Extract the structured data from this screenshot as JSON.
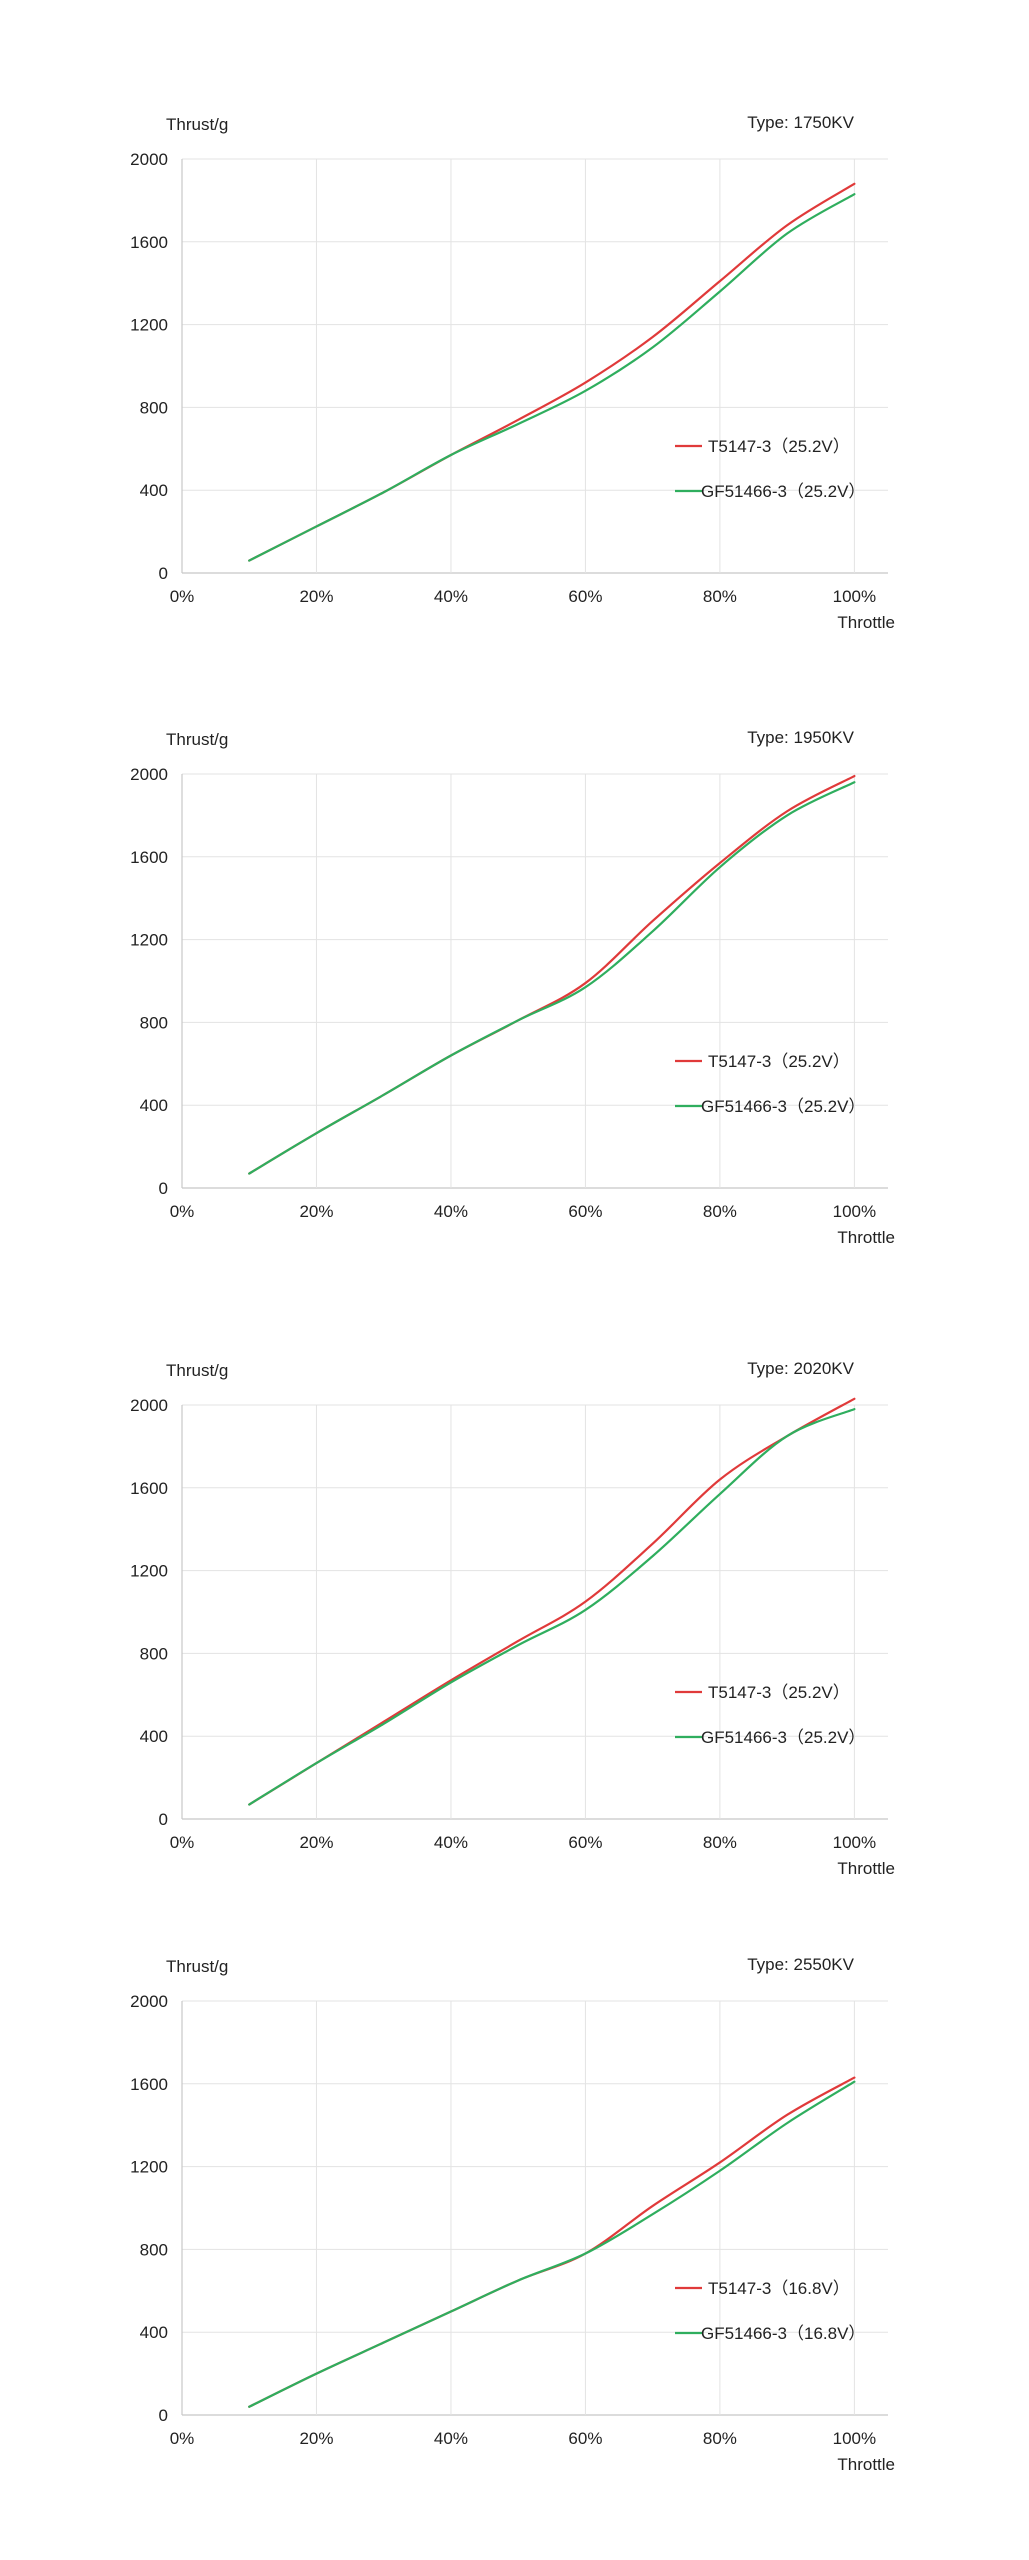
{
  "chart_data": [
    {
      "type": "line",
      "title": "Type: 1750KV",
      "xlabel": "Throttle",
      "ylabel": "Thrust/g",
      "x": [
        10,
        20,
        30,
        40,
        50,
        60,
        70,
        80,
        90,
        100
      ],
      "x_tick_labels": [
        "0%",
        "20%",
        "40%",
        "60%",
        "80%",
        "100%"
      ],
      "x_ticks": [
        0,
        20,
        40,
        60,
        80,
        100
      ],
      "xlim": [
        0,
        105
      ],
      "ylim": [
        0,
        2000
      ],
      "y_ticks": [
        0,
        400,
        800,
        1200,
        1600,
        2000
      ],
      "y_tick_labels": [
        "0",
        "400",
        "800",
        "1200",
        "1600",
        "2000"
      ],
      "grid": true,
      "legend_position": "right",
      "series": [
        {
          "name": "T5147-3（25.2V）",
          "color": "#e03a3a",
          "values": [
            60,
            225,
            390,
            570,
            740,
            920,
            1140,
            1410,
            1680,
            1880
          ]
        },
        {
          "name": "GF51466-3（25.2V）",
          "color": "#2fae5e",
          "values": [
            60,
            225,
            390,
            570,
            720,
            880,
            1090,
            1360,
            1640,
            1830
          ]
        }
      ]
    },
    {
      "type": "line",
      "title": "Type: 1950KV",
      "xlabel": "Throttle",
      "ylabel": "Thrust/g",
      "x": [
        10,
        20,
        30,
        40,
        50,
        60,
        70,
        80,
        90,
        100
      ],
      "x_tick_labels": [
        "0%",
        "20%",
        "40%",
        "60%",
        "80%",
        "100%"
      ],
      "x_ticks": [
        0,
        20,
        40,
        60,
        80,
        100
      ],
      "xlim": [
        0,
        105
      ],
      "ylim": [
        0,
        2000
      ],
      "y_ticks": [
        0,
        400,
        800,
        1200,
        1600,
        2000
      ],
      "y_tick_labels": [
        "0",
        "400",
        "800",
        "1200",
        "1600",
        "2000"
      ],
      "grid": true,
      "legend_position": "right",
      "series": [
        {
          "name": "T5147-3（25.2V）",
          "color": "#e03a3a",
          "values": [
            70,
            265,
            450,
            640,
            810,
            990,
            1290,
            1570,
            1820,
            1990
          ]
        },
        {
          "name": "GF51466-3（25.2V）",
          "color": "#2fae5e",
          "values": [
            70,
            265,
            450,
            640,
            810,
            970,
            1240,
            1550,
            1800,
            1960
          ]
        }
      ]
    },
    {
      "type": "line",
      "title": "Type: 2020KV",
      "xlabel": "Throttle",
      "ylabel": "Thrust/g",
      "x": [
        10,
        20,
        30,
        40,
        50,
        60,
        70,
        80,
        90,
        100
      ],
      "x_tick_labels": [
        "0%",
        "20%",
        "40%",
        "60%",
        "80%",
        "100%"
      ],
      "x_ticks": [
        0,
        20,
        40,
        60,
        80,
        100
      ],
      "xlim": [
        0,
        105
      ],
      "ylim": [
        0,
        2000
      ],
      "y_ticks": [
        0,
        400,
        800,
        1200,
        1600,
        2000
      ],
      "y_tick_labels": [
        "0",
        "400",
        "800",
        "1200",
        "1600",
        "2000"
      ],
      "grid": true,
      "legend_position": "right",
      "series": [
        {
          "name": "T5147-3（25.2V）",
          "color": "#e03a3a",
          "values": [
            70,
            270,
            470,
            670,
            860,
            1050,
            1330,
            1640,
            1850,
            2030
          ]
        },
        {
          "name": "GF51466-3（25.2V）",
          "color": "#2fae5e",
          "values": [
            70,
            270,
            460,
            660,
            840,
            1010,
            1270,
            1570,
            1850,
            1980
          ]
        }
      ]
    },
    {
      "type": "line",
      "title": "Type: 2550KV",
      "xlabel": "Throttle",
      "ylabel": "Thrust/g",
      "x": [
        10,
        20,
        30,
        40,
        50,
        60,
        70,
        80,
        90,
        100
      ],
      "x_tick_labels": [
        "0%",
        "20%",
        "40%",
        "60%",
        "80%",
        "100%"
      ],
      "x_ticks": [
        0,
        20,
        40,
        60,
        80,
        100
      ],
      "xlim": [
        0,
        105
      ],
      "ylim": [
        0,
        2000
      ],
      "y_ticks": [
        0,
        400,
        800,
        1200,
        1600,
        2000
      ],
      "y_tick_labels": [
        "0",
        "400",
        "800",
        "1200",
        "1600",
        "2000"
      ],
      "grid": true,
      "legend_position": "right",
      "series": [
        {
          "name": "T5147-3（16.8V）",
          "color": "#e03a3a",
          "values": [
            40,
            200,
            350,
            500,
            650,
            780,
            1010,
            1220,
            1450,
            1630
          ]
        },
        {
          "name": "GF51466-3（16.8V）",
          "color": "#2fae5e",
          "values": [
            40,
            200,
            350,
            500,
            650,
            780,
            970,
            1180,
            1410,
            1610
          ]
        }
      ]
    }
  ]
}
